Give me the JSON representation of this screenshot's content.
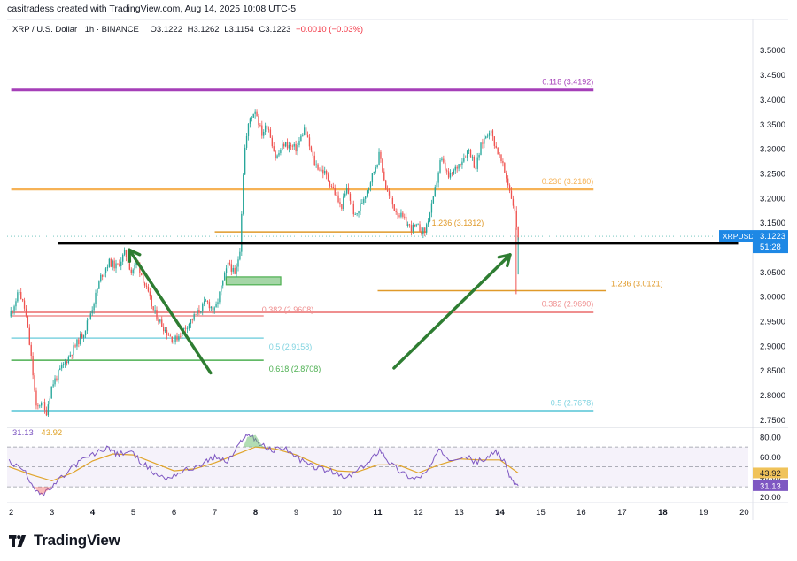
{
  "header": {
    "credit": "casitradess created with TradingView.com, Aug 14, 2025 10:08 UTC-5"
  },
  "legend": {
    "symbol": "XRP / U.S. Dollar · 1h · BINANCE",
    "open": "O3.1222",
    "high": "H3.1262",
    "low": "L3.1154",
    "close": "C3.1223",
    "change": "−0.0010 (−0.03%)"
  },
  "rsi_legend": {
    "rsi": "31.13",
    "ma": "43.92"
  },
  "brand": {
    "name": "TradingView"
  },
  "colors": {
    "up": "#26a69a",
    "down": "#ef5350",
    "fib_purple": "#a53fb8",
    "fib_orange": "#f6b256",
    "fib_pink": "#ef8f8f",
    "fib_teal": "#7fd3e0",
    "fib_green": "#4caf50",
    "arrow": "#2e7d32",
    "rsi": "#7e57c2",
    "rsi_ma": "#e0a42a"
  },
  "chart_data": {
    "type": "candlestick",
    "title": "XRP / U.S. Dollar · 1h · BINANCE",
    "ylim": [
      2.74,
      3.53
    ],
    "xlim": [
      1.9,
      20.1
    ],
    "y_ticks": [
      "3.5000",
      "3.4500",
      "3.4000",
      "3.3500",
      "3.3000",
      "3.2500",
      "3.2000",
      "3.1500",
      "3.1000",
      "3.0500",
      "3.0000",
      "2.9500",
      "2.9000",
      "2.8500",
      "2.8000",
      "2.7500"
    ],
    "x_ticks": [
      {
        "day": 2,
        "label": "2"
      },
      {
        "day": 3,
        "label": "3"
      },
      {
        "day": 4,
        "label": "4"
      },
      {
        "day": 5,
        "label": "5"
      },
      {
        "day": 6,
        "label": "6"
      },
      {
        "day": 7,
        "label": "7"
      },
      {
        "day": 8,
        "label": "8"
      },
      {
        "day": 9,
        "label": "9"
      },
      {
        "day": 10,
        "label": "10"
      },
      {
        "day": 11,
        "label": "11"
      },
      {
        "day": 12,
        "label": "12"
      },
      {
        "day": 13,
        "label": "13"
      },
      {
        "day": 14,
        "label": "14"
      },
      {
        "day": 15,
        "label": "15"
      },
      {
        "day": 16,
        "label": "16"
      },
      {
        "day": 17,
        "label": "17"
      },
      {
        "day": 18,
        "label": "18"
      },
      {
        "day": 19,
        "label": "19"
      },
      {
        "day": 20,
        "label": "20"
      }
    ],
    "bold_x_ticks": [
      4,
      8,
      11,
      14,
      18
    ],
    "price_path": [
      [
        1.95,
        2.96
      ],
      [
        2.2,
        3.01
      ],
      [
        2.35,
        2.97
      ],
      [
        2.5,
        2.87
      ],
      [
        2.62,
        2.77
      ],
      [
        2.75,
        2.79
      ],
      [
        2.85,
        2.76
      ],
      [
        3.0,
        2.82
      ],
      [
        3.2,
        2.85
      ],
      [
        3.5,
        2.89
      ],
      [
        3.8,
        2.93
      ],
      [
        4.0,
        2.98
      ],
      [
        4.2,
        3.04
      ],
      [
        4.4,
        3.07
      ],
      [
        4.6,
        3.06
      ],
      [
        4.8,
        3.09
      ],
      [
        4.95,
        3.05
      ],
      [
        5.1,
        3.07
      ],
      [
        5.3,
        3.02
      ],
      [
        5.5,
        2.97
      ],
      [
        5.8,
        2.93
      ],
      [
        6.0,
        2.91
      ],
      [
        6.2,
        2.93
      ],
      [
        6.5,
        2.96
      ],
      [
        6.8,
        2.99
      ],
      [
        7.0,
        2.97
      ],
      [
        7.2,
        3.03
      ],
      [
        7.35,
        3.07
      ],
      [
        7.5,
        3.04
      ],
      [
        7.62,
        3.1
      ],
      [
        7.72,
        3.29
      ],
      [
        7.85,
        3.36
      ],
      [
        8.0,
        3.38
      ],
      [
        8.15,
        3.33
      ],
      [
        8.3,
        3.35
      ],
      [
        8.5,
        3.28
      ],
      [
        8.7,
        3.31
      ],
      [
        9.0,
        3.3
      ],
      [
        9.2,
        3.34
      ],
      [
        9.45,
        3.27
      ],
      [
        9.7,
        3.25
      ],
      [
        9.9,
        3.22
      ],
      [
        10.1,
        3.18
      ],
      [
        10.25,
        3.22
      ],
      [
        10.45,
        3.16
      ],
      [
        10.6,
        3.19
      ],
      [
        10.8,
        3.23
      ],
      [
        11.05,
        3.29
      ],
      [
        11.2,
        3.22
      ],
      [
        11.4,
        3.18
      ],
      [
        11.6,
        3.16
      ],
      [
        11.8,
        3.14
      ],
      [
        12.0,
        3.14
      ],
      [
        12.15,
        3.13
      ],
      [
        12.35,
        3.19
      ],
      [
        12.55,
        3.28
      ],
      [
        12.75,
        3.24
      ],
      [
        13.0,
        3.27
      ],
      [
        13.25,
        3.3
      ],
      [
        13.4,
        3.26
      ],
      [
        13.55,
        3.31
      ],
      [
        13.75,
        3.34
      ],
      [
        13.92,
        3.3
      ],
      [
        14.05,
        3.27
      ],
      [
        14.2,
        3.23
      ],
      [
        14.35,
        3.18
      ],
      [
        14.45,
        3.12
      ]
    ],
    "last_price": 3.1223,
    "support_line": {
      "y": 3.108,
      "x1": 3.15,
      "x2": 19.85
    },
    "fib_levels": [
      {
        "label": "0.118 (3.4192)",
        "y": 3.4192,
        "x1": 2.0,
        "x2": 16.3,
        "color": "#a53fb8",
        "width": 3
      },
      {
        "label": "0.236 (3.2180)",
        "y": 3.218,
        "x1": 2.0,
        "x2": 16.3,
        "color": "#f6b256",
        "width": 3
      },
      {
        "label": "1.236 (3.1312)",
        "y": 3.1312,
        "x1": 7.0,
        "x2": 12.2,
        "color": "#e09a2a",
        "width": 1.5
      },
      {
        "label": "1.236 (3.0121)",
        "y": 3.0121,
        "x1": 11.0,
        "x2": 16.6,
        "color": "#e09a2a",
        "width": 1.5
      },
      {
        "label": "0.382 (2.9608)",
        "y": 2.9608,
        "x1": 2.0,
        "x2": 8.2,
        "color": "#ef8f8f",
        "width": 1.5
      },
      {
        "label": "0.382 (2.9690)",
        "y": 2.969,
        "x1": 2.0,
        "x2": 16.3,
        "color": "#ef8f8f",
        "width": 3
      },
      {
        "label": "0.5 (2.9158)",
        "y": 2.9158,
        "x1": 2.0,
        "x2": 8.2,
        "color": "#7fd3e0",
        "width": 1.5
      },
      {
        "label": "0.618 (2.8708)",
        "y": 2.8708,
        "x1": 2.0,
        "x2": 8.2,
        "color": "#4caf50",
        "width": 1.5
      },
      {
        "label": "0.5 (2.7678)",
        "y": 2.7678,
        "x1": 2.0,
        "x2": 16.3,
        "color": "#7fd3e0",
        "width": 3
      }
    ],
    "rsi_panel": {
      "ylim": [
        15,
        87
      ],
      "ticks": [
        "80.00",
        "60.00",
        "40.00",
        "20.00"
      ],
      "band": [
        30,
        70
      ],
      "middle": 50,
      "rsi_path": [
        [
          1.95,
          55
        ],
        [
          2.3,
          47
        ],
        [
          2.6,
          28
        ],
        [
          2.8,
          22
        ],
        [
          3.1,
          33
        ],
        [
          3.5,
          50
        ],
        [
          3.8,
          58
        ],
        [
          4.1,
          64
        ],
        [
          4.4,
          70
        ],
        [
          4.6,
          62
        ],
        [
          4.9,
          66
        ],
        [
          5.2,
          55
        ],
        [
          5.5,
          44
        ],
        [
          5.8,
          38
        ],
        [
          6.1,
          44
        ],
        [
          6.4,
          48
        ],
        [
          6.8,
          55
        ],
        [
          7.0,
          60
        ],
        [
          7.3,
          55
        ],
        [
          7.5,
          65
        ],
        [
          7.7,
          80
        ],
        [
          7.9,
          82
        ],
        [
          8.1,
          73
        ],
        [
          8.4,
          66
        ],
        [
          8.7,
          70
        ],
        [
          9.0,
          60
        ],
        [
          9.3,
          52
        ],
        [
          9.6,
          48
        ],
        [
          9.9,
          45
        ],
        [
          10.2,
          38
        ],
        [
          10.5,
          46
        ],
        [
          10.8,
          55
        ],
        [
          11.05,
          68
        ],
        [
          11.3,
          54
        ],
        [
          11.6,
          44
        ],
        [
          11.9,
          38
        ],
        [
          12.2,
          44
        ],
        [
          12.5,
          66
        ],
        [
          12.8,
          58
        ],
        [
          13.1,
          62
        ],
        [
          13.4,
          55
        ],
        [
          13.7,
          58
        ],
        [
          13.9,
          67
        ],
        [
          14.1,
          55
        ],
        [
          14.3,
          36
        ],
        [
          14.45,
          31.13
        ]
      ],
      "ma_path": [
        [
          1.95,
          50
        ],
        [
          2.5,
          42
        ],
        [
          3.0,
          36
        ],
        [
          3.5,
          44
        ],
        [
          4.0,
          56
        ],
        [
          4.5,
          63
        ],
        [
          5.0,
          62
        ],
        [
          5.5,
          54
        ],
        [
          6.0,
          46
        ],
        [
          6.5,
          48
        ],
        [
          7.0,
          54
        ],
        [
          7.5,
          62
        ],
        [
          8.0,
          70
        ],
        [
          8.5,
          68
        ],
        [
          9.0,
          62
        ],
        [
          9.5,
          53
        ],
        [
          10.0,
          46
        ],
        [
          10.5,
          45
        ],
        [
          11.0,
          52
        ],
        [
          11.5,
          52
        ],
        [
          12.0,
          44
        ],
        [
          12.5,
          52
        ],
        [
          13.0,
          58
        ],
        [
          13.5,
          57
        ],
        [
          14.0,
          57
        ],
        [
          14.45,
          43.92
        ]
      ]
    }
  }
}
